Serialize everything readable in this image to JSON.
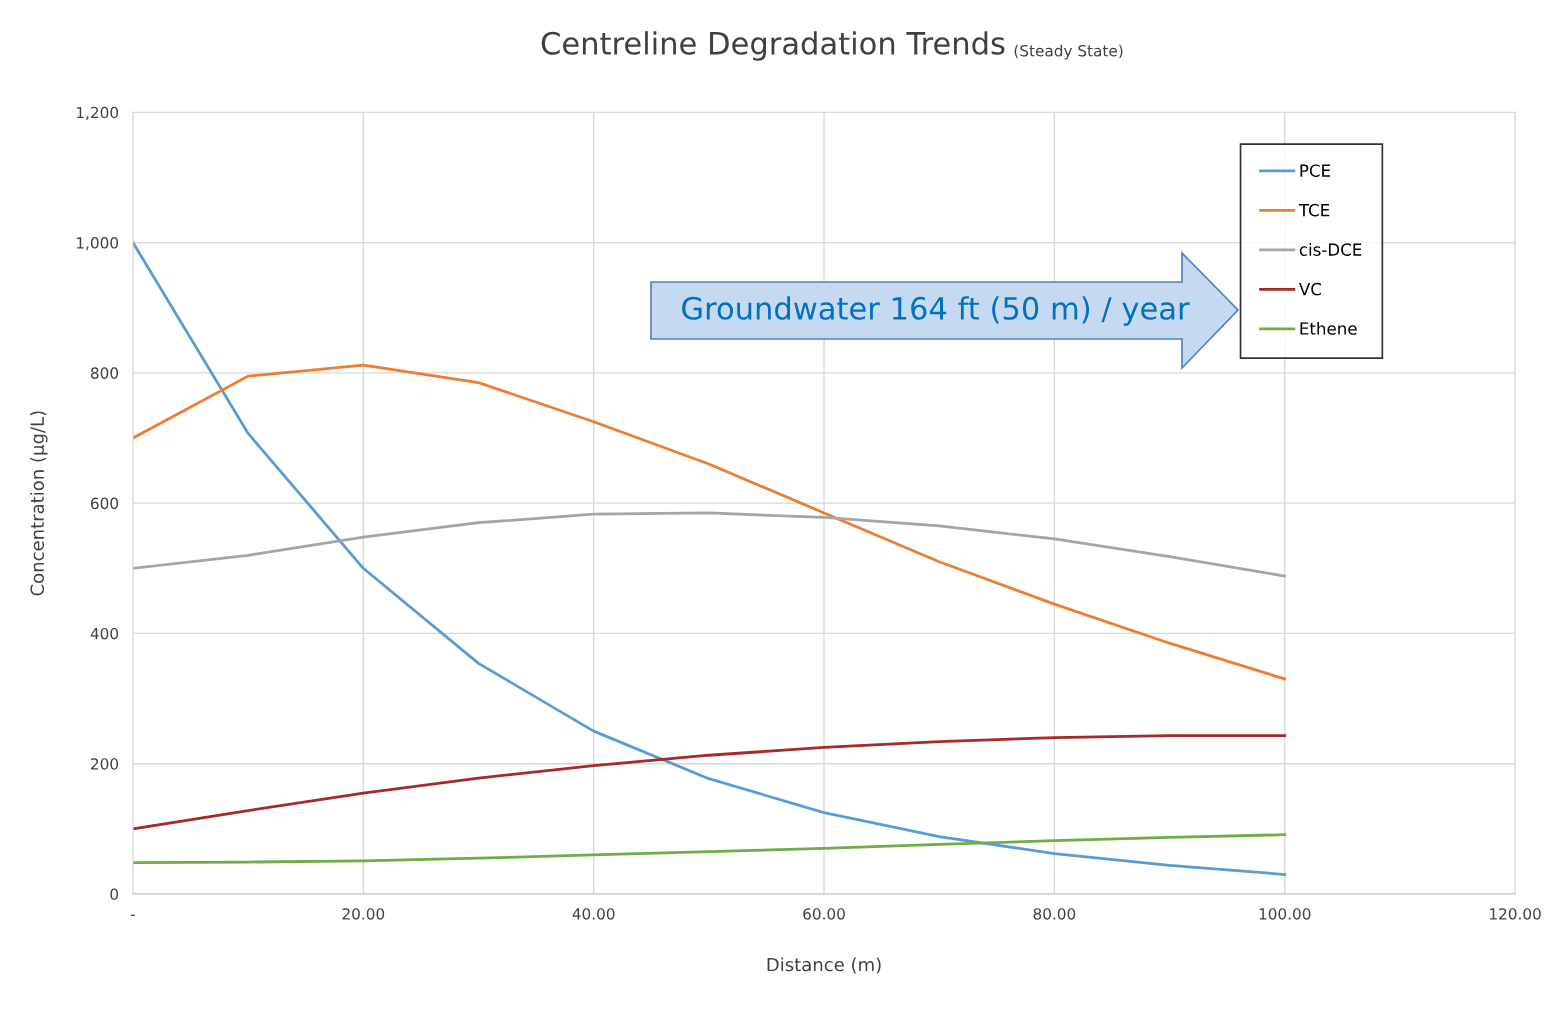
{
  "chart_data": {
    "type": "line",
    "title": "Centreline Degradation Trends",
    "subtitle": "(Steady State)",
    "xlabel": "Distance (m)",
    "ylabel": "Concentration (µg/L)",
    "x": [
      0,
      10,
      20,
      30,
      40,
      50,
      60,
      70,
      80,
      90,
      100
    ],
    "series": [
      {
        "name": "PCE",
        "color": "#5b9bd5",
        "values": [
          1000,
          707,
          500,
          354,
          250,
          177,
          125,
          88,
          62,
          44,
          30
        ]
      },
      {
        "name": "TCE",
        "color": "#ed7d31",
        "values": [
          700,
          795,
          812,
          785,
          725,
          660,
          585,
          510,
          445,
          385,
          330
        ]
      },
      {
        "name": "cis-DCE",
        "color": "#a5a5a5",
        "values": [
          500,
          520,
          548,
          570,
          583,
          585,
          578,
          565,
          545,
          518,
          488
        ]
      },
      {
        "name": "VC",
        "color": "#a52a2a",
        "values": [
          100,
          128,
          155,
          178,
          197,
          213,
          225,
          234,
          240,
          243,
          243
        ]
      },
      {
        "name": "Ethene",
        "color": "#70ad47",
        "values": [
          48,
          49,
          51,
          55,
          60,
          65,
          70,
          76,
          82,
          87,
          91
        ]
      }
    ],
    "xlim": [
      0,
      120
    ],
    "xticks": [
      {
        "value": 0,
        "label": "-"
      },
      {
        "value": 20,
        "label": "20.00"
      },
      {
        "value": 40,
        "label": "40.00"
      },
      {
        "value": 60,
        "label": "60.00"
      },
      {
        "value": 80,
        "label": "80.00"
      },
      {
        "value": 100,
        "label": "100.00"
      },
      {
        "value": 120,
        "label": "120.00"
      }
    ],
    "ylim": [
      0,
      1200
    ],
    "yticks": [
      0,
      200,
      400,
      600,
      800,
      {
        "value": 1000,
        "label": "1,000"
      },
      {
        "value": 1200,
        "label": "1,200"
      }
    ],
    "annotations": [
      "Groundwater 164 ft (50 m) / year"
    ],
    "grid": true,
    "legend": "top right",
    "marker": "none",
    "line_style": "solid"
  }
}
